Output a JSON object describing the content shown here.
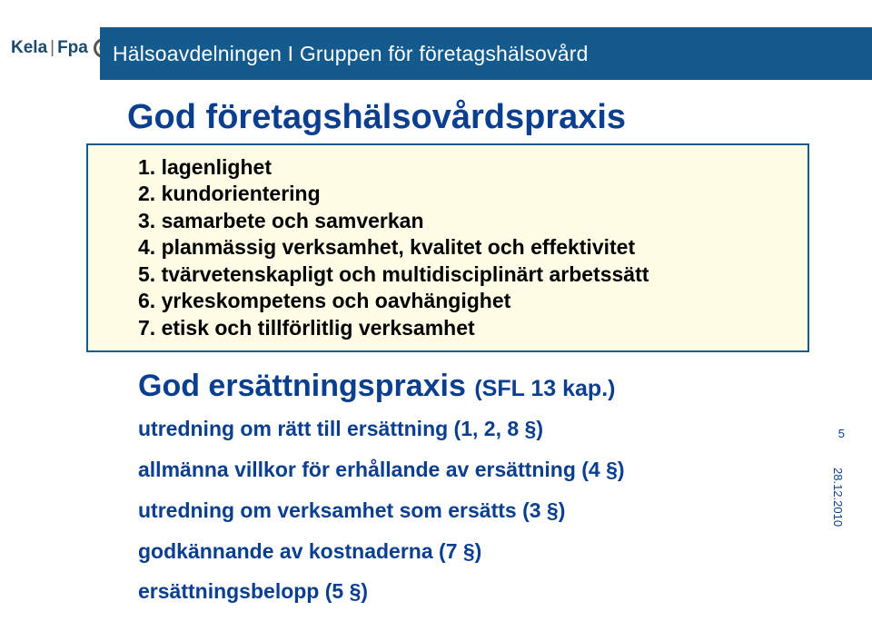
{
  "header": {
    "brand_left": "Kela",
    "brand_right": "Fpa",
    "title": "Hälsoavdelningen I Gruppen för företagshälsovård",
    "bar_color": "#145a8d",
    "text_color": "#ffffff"
  },
  "main_title": {
    "text": "God företagshälsovårdspraxis",
    "color": "#0a3e8f",
    "fontsize": 38
  },
  "principles_box": {
    "background": "#fffde6",
    "border_color": "#145a8d",
    "items": [
      "1. lagenlighet",
      "2. kundorientering",
      "3. samarbete och samverkan",
      "4. planmässig verksamhet, kvalitet och effektivitet",
      "5. tvärvetenskapligt och multidisciplinärt arbetssätt",
      "6. yrkeskompetens och oavhängighet",
      "7. etisk och tillförlitlig verksamhet"
    ],
    "text_color": "#000000",
    "fontsize": 23
  },
  "sub_title": {
    "main": "God ersättningspraxis",
    "paren": "(SFL 13 kap.)",
    "color": "#0a3e8f"
  },
  "sub_list": {
    "color": "#0a3e8f",
    "fontsize": 23,
    "items": [
      "utredning om rätt till ersättning (1, 2, 8 §)",
      "allmänna villkor för erhållande av ersättning (4 §)",
      "utredning om verksamhet som ersätts (3 §)",
      "godkännande av kostnaderna (7 §)",
      "ersättningsbelopp (5 §)"
    ]
  },
  "meta": {
    "page_num": "5",
    "date": "28.12.2010",
    "color": "#0a3e8f"
  }
}
